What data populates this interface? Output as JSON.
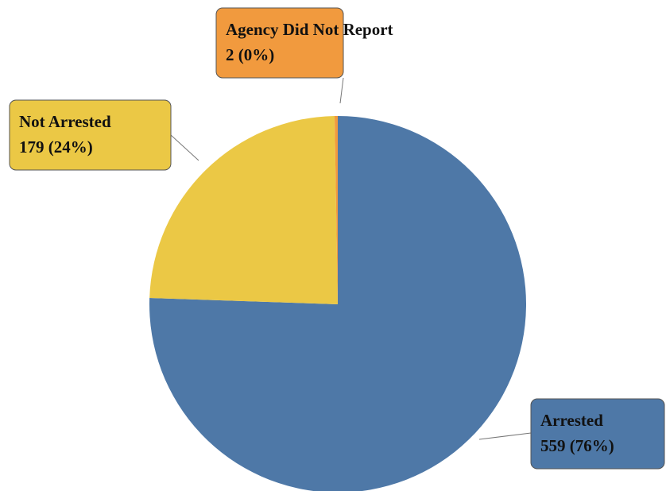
{
  "chart_data": {
    "type": "pie",
    "categories": [
      "Arrested",
      "Not Arrested",
      "Agency Did Not Report"
    ],
    "values": [
      559,
      179,
      2
    ],
    "value_labels": [
      "559 (76%)",
      "179 (24%)",
      "2 (0%)"
    ],
    "colors": [
      "#4e78a7",
      "#ebc845",
      "#f19a3e"
    ]
  }
}
